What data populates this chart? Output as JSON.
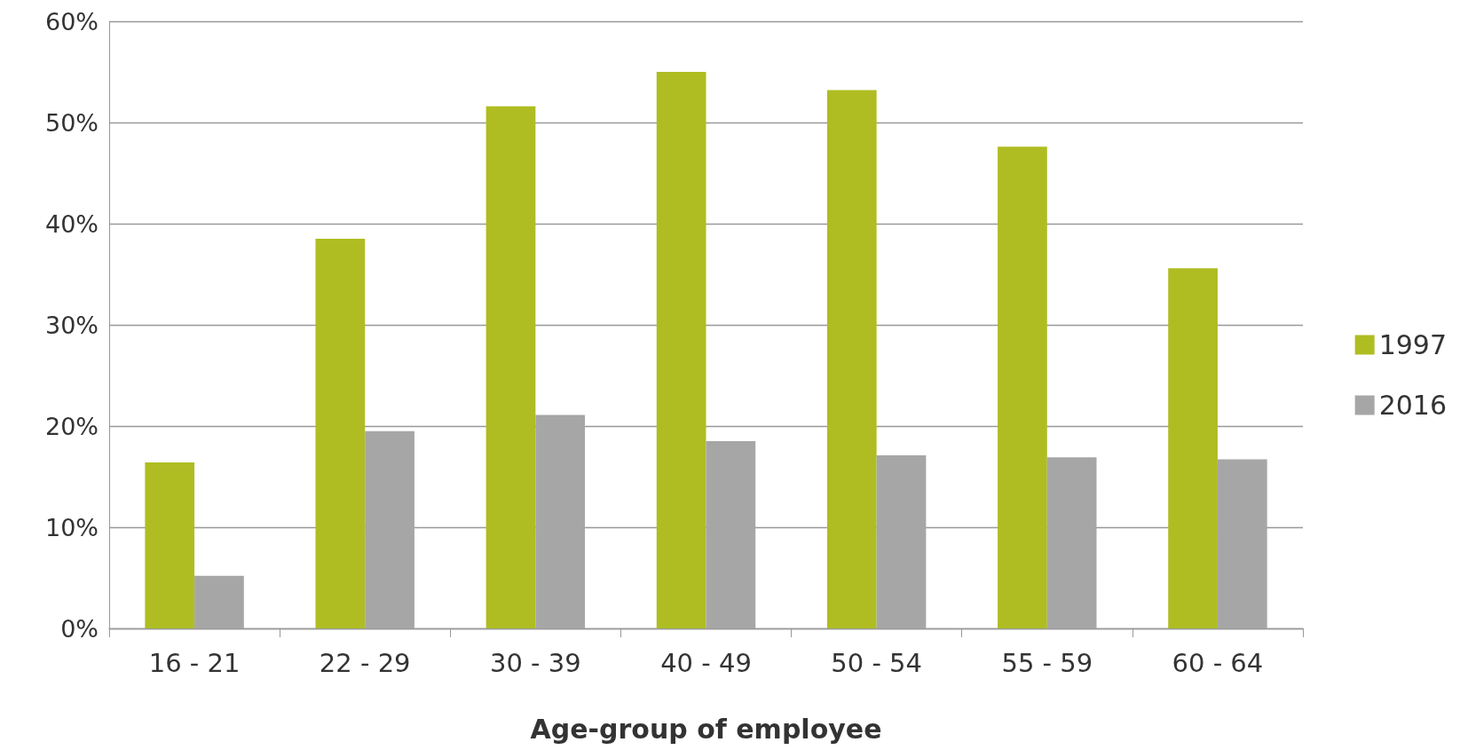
{
  "chart_data": {
    "type": "bar",
    "xlabel": "Age-group of employee",
    "categories": [
      "16 - 21",
      "22 - 29",
      "30 - 39",
      "40 - 49",
      "50 - 54",
      "55 - 59",
      "60 - 64"
    ],
    "series": [
      {
        "name": "1997",
        "color": "#afbd22",
        "values": [
          16.4,
          38.5,
          51.6,
          55.0,
          53.2,
          47.6,
          35.6
        ]
      },
      {
        "name": "2016",
        "color": "#a6a6a6",
        "values": [
          5.2,
          19.5,
          21.1,
          18.5,
          17.1,
          16.9,
          16.7
        ]
      }
    ],
    "ylim": [
      0,
      60
    ],
    "yticks": [
      {
        "value": 0,
        "label": "0%"
      },
      {
        "value": 10,
        "label": "10%"
      },
      {
        "value": 20,
        "label": "20%"
      },
      {
        "value": 30,
        "label": "30%"
      },
      {
        "value": 40,
        "label": "40%"
      },
      {
        "value": 50,
        "label": "50%"
      },
      {
        "value": 60,
        "label": "60%"
      }
    ],
    "grid": "y",
    "legend": "right"
  }
}
